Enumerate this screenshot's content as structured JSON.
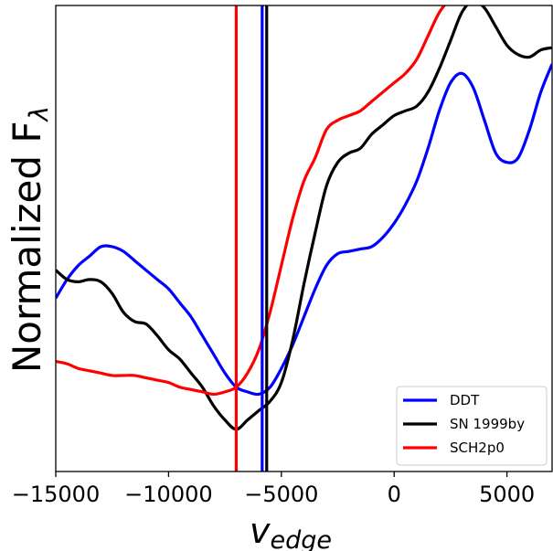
{
  "chart_data": {
    "type": "line",
    "xlabel": "v",
    "xlabel_sub": "edge",
    "ylabel": "Normalized F",
    "ylabel_sub": "λ",
    "xlim": [
      -15000,
      7000
    ],
    "ylim": [
      0,
      1
    ],
    "xticks": [
      -15000,
      -10000,
      -5000,
      0,
      5000
    ],
    "xtick_labels": [
      "−15000",
      "−10000",
      "−5000",
      "0",
      "5000"
    ],
    "yticks_shown": false,
    "grid": false,
    "legend_position": "bottom-right",
    "series": [
      {
        "name": "DDT",
        "color": "#0000ff",
        "x": [
          -15000,
          -14500,
          -14000,
          -13500,
          -13000,
          -12500,
          -12000,
          -11500,
          -11000,
          -10500,
          -10000,
          -9500,
          -9000,
          -8500,
          -8000,
          -7500,
          -7000,
          -6500,
          -6000,
          -5500,
          -5000,
          -4500,
          -4000,
          -3500,
          -3000,
          -2500,
          -2000,
          -1500,
          -1000,
          -500,
          0,
          500,
          1000,
          1500,
          2000,
          2500,
          3000,
          3500,
          4000,
          4500,
          5000,
          5500,
          6000,
          6500,
          7000
        ],
        "y": [
          0.36,
          0.4,
          0.43,
          0.45,
          0.47,
          0.47,
          0.46,
          0.44,
          0.42,
          0.4,
          0.38,
          0.35,
          0.32,
          0.28,
          0.24,
          0.2,
          0.17,
          0.16,
          0.155,
          0.17,
          0.21,
          0.26,
          0.32,
          0.38,
          0.43,
          0.455,
          0.46,
          0.465,
          0.47,
          0.49,
          0.52,
          0.56,
          0.61,
          0.68,
          0.76,
          0.82,
          0.84,
          0.81,
          0.74,
          0.67,
          0.65,
          0.66,
          0.72,
          0.8,
          0.86
        ]
      },
      {
        "name": "SN 1999by",
        "color": "#000000",
        "x": [
          -15000,
          -14500,
          -14000,
          -13500,
          -13000,
          -12500,
          -12000,
          -11500,
          -11000,
          -10500,
          -10000,
          -9500,
          -9000,
          -8500,
          -8000,
          -7500,
          -7000,
          -6500,
          -6000,
          -5500,
          -5000,
          -4500,
          -4000,
          -3500,
          -3000,
          -2500,
          -2000,
          -1500,
          -1000,
          -500,
          0,
          500,
          1000,
          1500,
          2000,
          2500,
          3000,
          3500,
          4000,
          4500,
          5000,
          5500,
          6000,
          6500,
          7000
        ],
        "y": [
          0.42,
          0.4,
          0.395,
          0.4,
          0.395,
          0.37,
          0.33,
          0.31,
          0.305,
          0.28,
          0.25,
          0.23,
          0.2,
          0.17,
          0.13,
          0.1,
          0.08,
          0.1,
          0.12,
          0.14,
          0.18,
          0.27,
          0.39,
          0.5,
          0.6,
          0.65,
          0.67,
          0.68,
          0.71,
          0.73,
          0.75,
          0.76,
          0.77,
          0.8,
          0.85,
          0.91,
          0.97,
          0.995,
          0.98,
          0.94,
          0.9,
          0.88,
          0.875,
          0.89,
          0.895
        ]
      },
      {
        "name": "SCH2p0",
        "color": "#ff0000",
        "x": [
          -15000,
          -14500,
          -14000,
          -13500,
          -13000,
          -12500,
          -12000,
          -11500,
          -11000,
          -10500,
          -10000,
          -9500,
          -9000,
          -8500,
          -8000,
          -7500,
          -7000,
          -6500,
          -6000,
          -5500,
          -5000,
          -4500,
          -4000,
          -3500,
          -3000,
          -2500,
          -2000,
          -1500,
          -1000,
          -500,
          0,
          500,
          1000,
          1500,
          2000,
          2500,
          3000,
          3500,
          4000,
          4500,
          5000,
          5500,
          6000,
          6500,
          7000
        ],
        "y": [
          0.225,
          0.22,
          0.21,
          0.205,
          0.2,
          0.195,
          0.195,
          0.195,
          0.19,
          0.185,
          0.18,
          0.17,
          0.165,
          0.16,
          0.155,
          0.16,
          0.17,
          0.2,
          0.25,
          0.33,
          0.43,
          0.53,
          0.61,
          0.66,
          0.72,
          0.74,
          0.75,
          0.76,
          0.78,
          0.8,
          0.82,
          0.84,
          0.87,
          0.92,
          0.97,
          1.0,
          1.02,
          1.03,
          1.0,
          0.99,
          1.0,
          1.01,
          1.02,
          1.02,
          1.02
        ]
      }
    ],
    "vlines": [
      {
        "x": -7000,
        "color": "#ff0000"
      },
      {
        "x": -5850,
        "color": "#0000ff"
      },
      {
        "x": -5650,
        "color": "#000000"
      }
    ]
  }
}
